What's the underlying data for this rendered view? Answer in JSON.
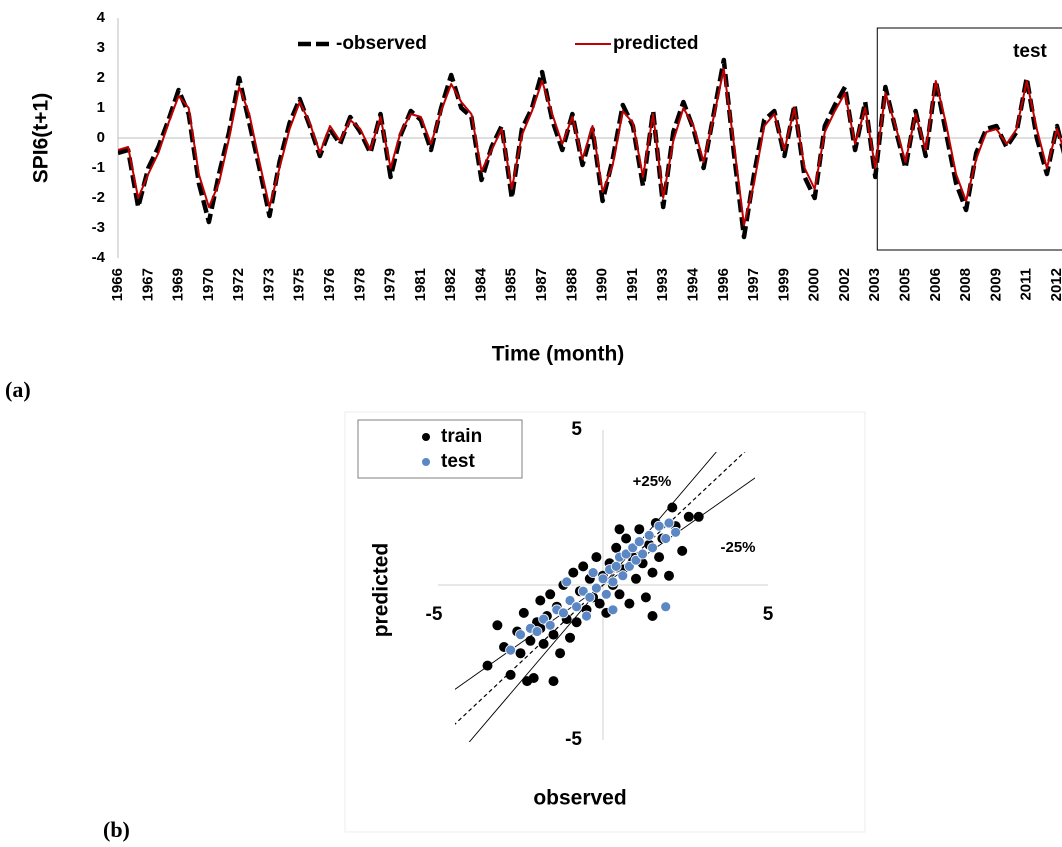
{
  "chart_data": [
    {
      "type": "line",
      "panel_label": "(a)",
      "x_label": "Time (month)",
      "y_label": "SPI6(t+1)",
      "annotation": "test",
      "legend": "top",
      "categories": [
        "1966",
        null,
        null,
        "1967",
        null,
        null,
        "1969",
        null,
        null,
        "1970",
        null,
        null,
        "1972",
        null,
        null,
        "1973",
        null,
        null,
        "1975",
        null,
        null,
        "1976",
        null,
        null,
        "1978",
        null,
        null,
        "1979",
        null,
        null,
        "1981",
        null,
        null,
        "1982",
        null,
        null,
        "1984",
        null,
        null,
        "1985",
        null,
        null,
        "1987",
        null,
        null,
        "1988",
        null,
        null,
        "1990",
        null,
        null,
        "1991",
        null,
        null,
        "1993",
        null,
        null,
        "1994",
        null,
        null,
        "1996",
        null,
        null,
        "1997",
        null,
        null,
        "1999",
        null,
        null,
        "2000",
        null,
        null,
        "2002",
        null,
        null,
        "2003",
        null,
        null,
        "2005",
        null,
        null,
        "2006",
        null,
        null,
        "2008",
        null,
        null,
        "2009",
        null,
        null,
        "2011",
        null,
        null,
        "2012",
        null,
        null
      ],
      "series": [
        {
          "name": "-observed",
          "color": "#000000",
          "style": "dashed",
          "values": [
            -0.5,
            -0.4,
            -2.3,
            -1.0,
            -0.3,
            0.6,
            1.6,
            0.8,
            -1.5,
            -2.8,
            -1.2,
            0.2,
            2.0,
            0.5,
            -1.0,
            -2.6,
            -0.8,
            0.5,
            1.3,
            0.4,
            -0.6,
            0.3,
            -0.2,
            0.7,
            0.2,
            -0.5,
            0.8,
            -1.3,
            0.1,
            0.9,
            0.6,
            -0.4,
            1.0,
            2.1,
            1.0,
            0.7,
            -1.4,
            -0.3,
            0.4,
            -2.0,
            0.3,
            1.0,
            2.2,
            0.6,
            -0.4,
            0.8,
            -0.9,
            0.3,
            -2.1,
            -0.7,
            1.1,
            0.4,
            -1.6,
            0.9,
            -2.3,
            0.2,
            1.2,
            0.3,
            -1.0,
            0.8,
            2.6,
            -0.5,
            -3.3,
            -1.2,
            0.6,
            0.9,
            -0.6,
            1.1,
            -1.3,
            -2.0,
            0.4,
            1.1,
            1.7,
            -0.4,
            1.2,
            -1.3,
            1.7,
            0.3,
            -1.0,
            0.9,
            -0.6,
            1.9,
            0.2,
            -1.5,
            -2.4,
            -0.5,
            0.3,
            0.4,
            -0.3,
            0.2,
            2.0,
            0.0,
            -1.2,
            0.4,
            -0.9,
            0.5
          ]
        },
        {
          "name": "predicted",
          "color": "#c00000",
          "style": "solid",
          "values": [
            -0.4,
            -0.3,
            -2.0,
            -1.2,
            -0.5,
            0.5,
            1.4,
            1.0,
            -1.2,
            -2.3,
            -1.5,
            0.0,
            1.7,
            0.8,
            -0.8,
            -2.3,
            -1.0,
            0.3,
            1.2,
            0.5,
            -0.5,
            0.4,
            -0.1,
            0.6,
            0.3,
            -0.4,
            0.7,
            -1.0,
            0.2,
            0.8,
            0.7,
            -0.2,
            0.9,
            1.8,
            1.2,
            0.8,
            -1.1,
            -0.4,
            0.3,
            -1.7,
            0.1,
            0.9,
            1.9,
            0.8,
            -0.2,
            0.7,
            -0.7,
            0.4,
            -1.8,
            -0.9,
            0.9,
            0.5,
            -1.3,
            0.8,
            -2.0,
            -0.1,
            1.0,
            0.4,
            -0.8,
            0.7,
            2.3,
            -0.2,
            -2.9,
            -1.5,
            0.4,
            0.8,
            -0.4,
            1.0,
            -1.0,
            -1.7,
            0.2,
            0.9,
            1.5,
            -0.2,
            1.0,
            -1.0,
            1.5,
            0.4,
            -0.8,
            0.8,
            -0.4,
            1.9,
            0.5,
            -1.2,
            -2.1,
            -0.7,
            0.2,
            0.3,
            -0.2,
            0.3,
            1.9,
            0.3,
            -1.0,
            0.3,
            -0.7,
            0.4
          ]
        }
      ],
      "ylim": [
        -4,
        4
      ],
      "yticks": [
        -4,
        -3,
        -2,
        -1,
        0,
        1,
        2,
        3,
        4
      ]
    },
    {
      "type": "scatter",
      "panel_label": "(b)",
      "x_label": "observed",
      "y_label": "predicted",
      "legend": "top-left",
      "xlim": [
        -5,
        5
      ],
      "ylim": [
        -5,
        5
      ],
      "xticks": [
        -5,
        5
      ],
      "yticks": [
        -5,
        5
      ],
      "reference_lines": [
        {
          "label": "+25%",
          "slope": 1.25,
          "style": "solid"
        },
        {
          "slope": 1,
          "style": "dashed"
        },
        {
          "label": "-25%",
          "slope": 0.75,
          "style": "solid"
        }
      ],
      "series": [
        {
          "name": "train",
          "color": "#000000",
          "x": [
            -3.5,
            -3.2,
            -3.0,
            -2.8,
            -2.6,
            -2.5,
            -2.4,
            -2.2,
            -2.1,
            -2.0,
            -1.9,
            -1.8,
            -1.7,
            -1.6,
            -1.5,
            -1.4,
            -1.3,
            -1.2,
            -1.1,
            -1.0,
            -0.9,
            -0.8,
            -0.7,
            -0.6,
            -0.5,
            -0.4,
            -0.3,
            -0.2,
            -0.1,
            0.0,
            0.1,
            0.2,
            0.3,
            0.4,
            0.5,
            0.6,
            0.7,
            0.8,
            0.9,
            1.0,
            1.1,
            1.2,
            1.3,
            1.4,
            1.5,
            1.6,
            1.7,
            1.8,
            2.0,
            2.2,
            2.4,
            2.6,
            2.9,
            -2.3,
            -1.9,
            -1.0,
            0.5,
            1.5,
            -1.5,
            2.1
          ],
          "values": [
            -2.6,
            -1.3,
            -2.0,
            -2.9,
            -1.5,
            -2.2,
            -0.9,
            -1.8,
            -3.0,
            -1.2,
            -0.5,
            -1.9,
            -1.0,
            -0.3,
            -1.6,
            -0.7,
            -2.2,
            0.0,
            -1.1,
            -0.5,
            0.4,
            -1.2,
            -0.2,
            0.6,
            -0.8,
            0.2,
            -0.4,
            0.9,
            -0.6,
            0.3,
            -0.9,
            0.7,
            0.0,
            1.2,
            -0.3,
            0.5,
            1.5,
            -0.6,
            0.9,
            0.2,
            1.8,
            0.7,
            -0.4,
            1.3,
            0.4,
            2.0,
            0.9,
            1.5,
            0.3,
            1.9,
            1.1,
            2.2,
            2.2,
            -3.1,
            -1.4,
            -1.7,
            1.8,
            -1.0,
            -3.1,
            2.5
          ]
        },
        {
          "name": "test",
          "color": "#5b87c5",
          "x": [
            -2.8,
            -2.5,
            -2.2,
            -2.0,
            -1.8,
            -1.6,
            -1.4,
            -1.2,
            -1.0,
            -0.8,
            -0.6,
            -0.4,
            -0.3,
            -0.2,
            0.0,
            0.1,
            0.2,
            0.3,
            0.4,
            0.5,
            0.6,
            0.7,
            0.8,
            0.9,
            1.0,
            1.1,
            1.2,
            1.4,
            1.5,
            1.7,
            1.9,
            2.0,
            2.2,
            -0.5,
            0.3,
            -1.1,
            1.9
          ],
          "values": [
            -2.1,
            -1.6,
            -1.4,
            -1.5,
            -1.1,
            -1.3,
            -0.8,
            -0.9,
            -0.5,
            -0.7,
            -0.2,
            -0.4,
            0.4,
            -0.1,
            0.2,
            -0.3,
            0.5,
            0.1,
            0.6,
            0.9,
            0.3,
            1.0,
            0.6,
            1.2,
            0.8,
            1.4,
            1.0,
            1.6,
            1.2,
            1.9,
            1.5,
            2.0,
            1.7,
            -1.0,
            -0.8,
            0.1,
            -0.7
          ]
        }
      ]
    }
  ]
}
